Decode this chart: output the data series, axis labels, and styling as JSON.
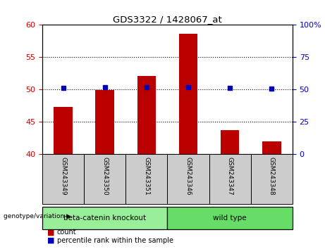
{
  "title": "GDS3322 / 1428067_at",
  "categories": [
    "GSM243349",
    "GSM243350",
    "GSM243351",
    "GSM243346",
    "GSM243347",
    "GSM243348"
  ],
  "count_values": [
    47.3,
    49.9,
    52.1,
    58.6,
    43.7,
    42.0
  ],
  "percentile_values": [
    51.5,
    51.6,
    52.0,
    51.9,
    51.4,
    50.8
  ],
  "ylim_left": [
    40,
    60
  ],
  "ylim_right": [
    0,
    100
  ],
  "yticks_left": [
    40,
    45,
    50,
    55,
    60
  ],
  "yticks_right": [
    0,
    25,
    50,
    75,
    100
  ],
  "grid_lines": [
    45,
    50,
    55
  ],
  "bar_color": "#bb0000",
  "dot_color": "#0000bb",
  "bar_bottom": 40,
  "group1_label": "beta-catenin knockout",
  "group2_label": "wild type",
  "group1_color": "#99ee99",
  "group2_color": "#66dd66",
  "left_tick_color": "#cc0000",
  "right_tick_color": "#0000cc",
  "legend_count": "count",
  "legend_percentile": "percentile rank within the sample",
  "xlabel_label": "genotype/variation",
  "bg_color": "#ffffff",
  "gray_box_color": "#cccccc"
}
